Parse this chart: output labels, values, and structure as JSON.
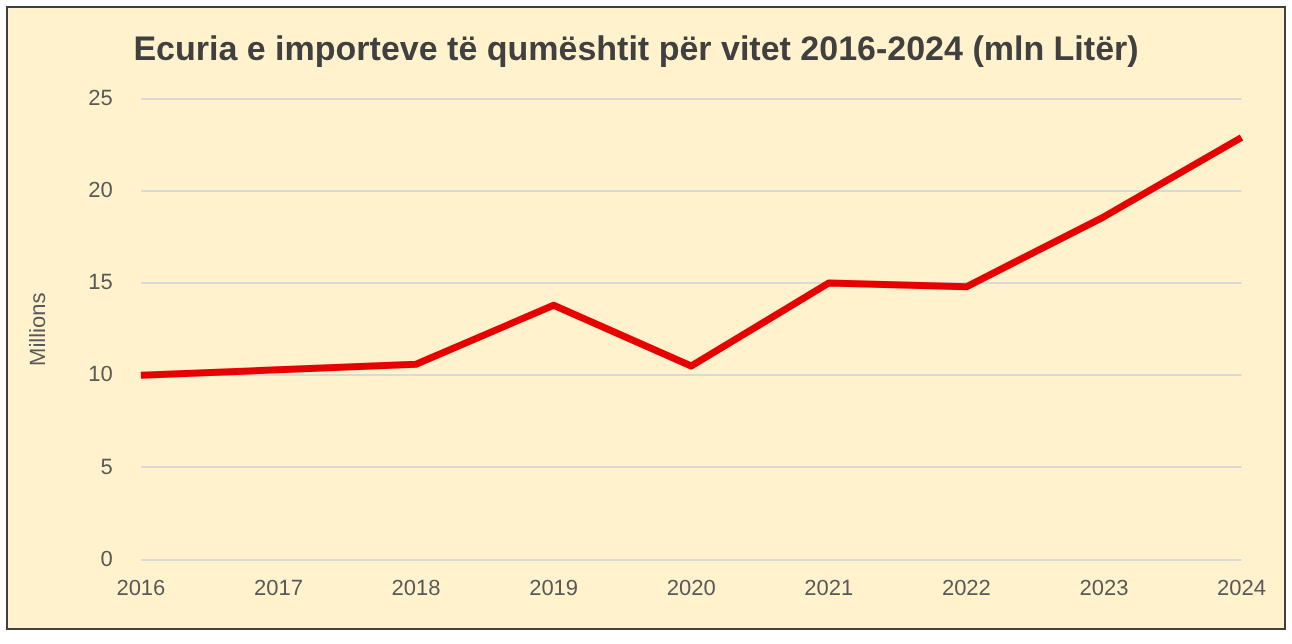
{
  "chart_data": {
    "type": "line",
    "title": "Ecuria e importeve të qumështit për vitet 2016-2024 (mln Litër)",
    "ylabel": "Millions",
    "categories": [
      "2016",
      "2017",
      "2018",
      "2019",
      "2020",
      "2021",
      "2022",
      "2023",
      "2024"
    ],
    "series": [
      {
        "color": "#e60000",
        "values": [
          10.0,
          10.3,
          10.6,
          13.8,
          10.5,
          15.0,
          14.8,
          18.6,
          22.9
        ]
      }
    ],
    "ylim": [
      0,
      25
    ],
    "yticks": [
      0,
      5,
      10,
      15,
      20,
      25
    ],
    "grid": "y",
    "legend": false,
    "marker": "none",
    "line_style": "solid"
  }
}
